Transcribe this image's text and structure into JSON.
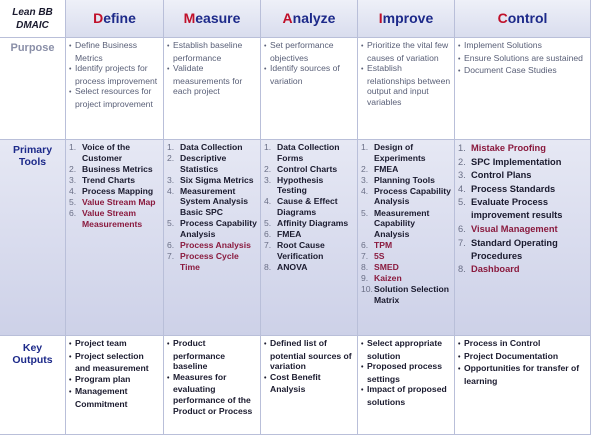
{
  "corner": {
    "line1": "Lean BB",
    "line2": "DMAIC"
  },
  "phases": [
    {
      "first": "D",
      "rest": "efine"
    },
    {
      "first": "M",
      "rest": "easure"
    },
    {
      "first": "A",
      "rest": "nalyze"
    },
    {
      "first": "I",
      "rest": "mprove"
    },
    {
      "first": "C",
      "rest": "ontrol"
    }
  ],
  "rows": {
    "purpose": {
      "label": "Purpose"
    },
    "tools": {
      "label_line1": "Primary",
      "label_line2": "Tools"
    },
    "outputs": {
      "label_line1": "Key",
      "label_line2": "Outputs"
    }
  },
  "purpose": [
    [
      "Define Business Metrics",
      "Identify projects for process improvement",
      "Select resources for project improvement"
    ],
    [
      "Establish baseline performance",
      "Validate measurements for each project"
    ],
    [
      "Set performance objectives",
      "Identify sources of variation"
    ],
    [
      "Prioritize the vital few causes of variation",
      "Establish relationships between output and input variables"
    ],
    [
      "Implement Solutions",
      "Ensure Solutions are sustained",
      "Document Case Studies"
    ]
  ],
  "tools": [
    [
      {
        "n": "1.",
        "t": "Voice of the Customer"
      },
      {
        "n": "2.",
        "t": "Business Metrics"
      },
      {
        "n": "3.",
        "t": "Trend Charts"
      },
      {
        "n": "4.",
        "t": "Process Mapping"
      },
      {
        "n": "5.",
        "t": "Value Stream Map",
        "accent": true
      },
      {
        "n": "6.",
        "t": "Value Stream Measurements",
        "accent": true
      }
    ],
    [
      {
        "n": "1.",
        "t": "Data Collection"
      },
      {
        "n": "2.",
        "t": "Descriptive Statistics"
      },
      {
        "n": "3.",
        "t": "Six Sigma Metrics"
      },
      {
        "n": "4.",
        "t": "Measurement System Analysis Basic SPC"
      },
      {
        "n": "5.",
        "t": "Process Capability Analysis"
      },
      {
        "n": "6.",
        "t": "Process Analysis",
        "accent": true
      },
      {
        "n": "7.",
        "t": "Process Cycle Time",
        "accent": true
      }
    ],
    [
      {
        "n": "1.",
        "t": "Data Collection Forms"
      },
      {
        "n": "2.",
        "t": "Control Charts"
      },
      {
        "n": "3.",
        "t": "Hypothesis Testing"
      },
      {
        "n": "4.",
        "t": "Cause & Effect Diagrams"
      },
      {
        "n": "5.",
        "t": "Affinity Diagrams"
      },
      {
        "n": "6.",
        "t": "FMEA"
      },
      {
        "n": "7.",
        "t": "Root Cause Verification"
      },
      {
        "n": "8.",
        "t": "ANOVA"
      }
    ],
    [
      {
        "n": "1.",
        "t": "Design of Experiments"
      },
      {
        "n": "2.",
        "t": "FMEA"
      },
      {
        "n": "3.",
        "t": "Planning Tools"
      },
      {
        "n": "4.",
        "t": "Process Capability Analysis"
      },
      {
        "n": "5.",
        "t": "Measurement Capability Analysis"
      },
      {
        "n": "6.",
        "t": "TPM",
        "accent": true
      },
      {
        "n": "7.",
        "t": "5S",
        "accent": true
      },
      {
        "n": "8.",
        "t": "SMED",
        "accent": true
      },
      {
        "n": "9.",
        "t": "Kaizen",
        "accent": true
      },
      {
        "n": "10.",
        "t": "Solution Selection Matrix"
      }
    ],
    [
      {
        "n": "1.",
        "t": "Mistake Proofing",
        "accent": true
      },
      {
        "n": "2.",
        "t": "SPC Implementation"
      },
      {
        "n": "3.",
        "t": "Control Plans"
      },
      {
        "n": "4.",
        "t": "Process Standards"
      },
      {
        "n": "5.",
        "t": "Evaluate Process improvement results"
      },
      {
        "n": "6.",
        "t": "Visual Management",
        "accent": true
      },
      {
        "n": "7.",
        "t": "Standard Operating Procedures"
      },
      {
        "n": "8.",
        "t": "Dashboard",
        "accent": true
      }
    ]
  ],
  "outputs": [
    [
      "Project team",
      "Project  selection and measurement",
      "Program plan",
      "Management Commitment"
    ],
    [
      "Product performance baseline",
      "Measures for evaluating performance of the Product or Process"
    ],
    [
      "Defined list of potential sources of variation",
      "Cost Benefit Analysis"
    ],
    [
      "Select appropriate solution",
      "Proposed process settings",
      "Impact of proposed solutions"
    ],
    [
      "Process in Control",
      "Project Documentation",
      "Opportunities for transfer of learning"
    ]
  ],
  "colors": {
    "accent": "#8a1a3e",
    "header_first_letter": "#c0102a",
    "header_text": "#1d2a8a",
    "tools_bg": "#d9dcee"
  }
}
